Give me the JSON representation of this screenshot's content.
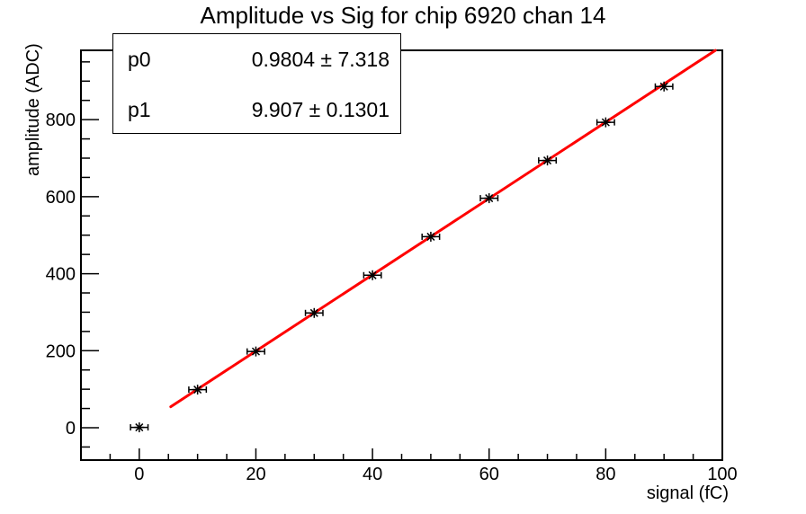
{
  "title": "Amplitude vs Sig for chip 6920 chan 14",
  "stats_box": {
    "rows": [
      {
        "name": "p0",
        "value": "0.9804 ± 7.318"
      },
      {
        "name": "p1",
        "value": "9.907 ± 0.1301"
      }
    ]
  },
  "axes": {
    "x_title": "signal (fC)",
    "y_title": "amplitude (ADC)"
  },
  "chart_data": {
    "type": "scatter",
    "title": "Amplitude vs Sig for chip 6920 chan 14",
    "xlabel": "signal (fC)",
    "ylabel": "amplitude (ADC)",
    "xlim": [
      -10,
      100
    ],
    "ylim": [
      -84,
      980
    ],
    "x_major_ticks": [
      0,
      20,
      40,
      60,
      80,
      100
    ],
    "x_minor_step": 5,
    "y_major_ticks": [
      0,
      200,
      400,
      600,
      800
    ],
    "y_minor_step": 50,
    "grid": false,
    "legend": "none",
    "marker_style": "asterisk-with-x-error-bars",
    "points": {
      "x": [
        0,
        10,
        20,
        30,
        40,
        50,
        60,
        70,
        80,
        90
      ],
      "y": [
        1,
        99,
        198,
        298,
        396,
        496,
        596,
        694,
        793,
        886
      ],
      "xerr": 1.5
    },
    "fit": {
      "type": "linear",
      "p0": 0.9804,
      "p0_err": 7.318,
      "p1": 9.907,
      "p1_err": 0.1301,
      "x_range": [
        5.4,
        98.8
      ]
    },
    "colors": {
      "fit_line": "#ff0000",
      "marker": "#000000",
      "axis": "#000000",
      "background": "#ffffff",
      "stats_border": "#000000"
    }
  }
}
